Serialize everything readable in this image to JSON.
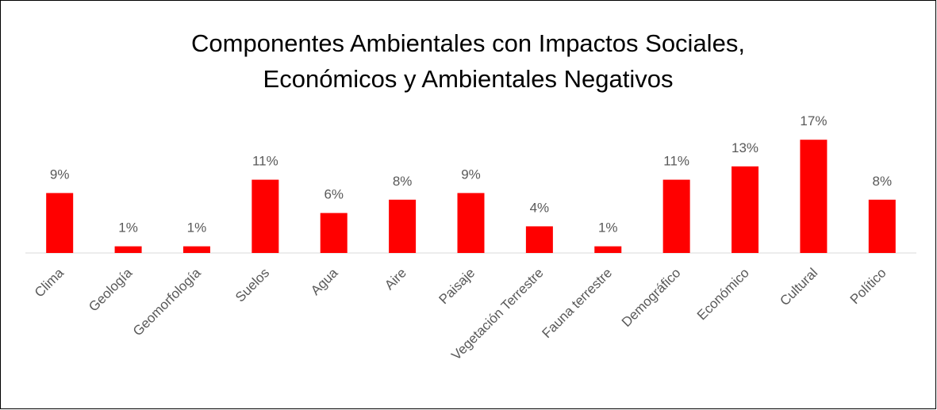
{
  "chart_data": {
    "type": "bar",
    "title": [
      "Componentes Ambientales con Impactos Sociales,",
      "Económicos y Ambientales Negativos"
    ],
    "categories": [
      "Clima",
      "Geología",
      "Geomorfología",
      "Suelos",
      "Agua",
      "Aire",
      "Paisaje",
      "Vegetación Terrestre",
      "Fauna terrestre",
      "Demográfico",
      "Económico",
      "Cultural",
      "Político"
    ],
    "values": [
      9,
      1,
      1,
      11,
      6,
      8,
      9,
      4,
      1,
      11,
      13,
      17,
      8
    ],
    "value_labels": [
      "9%",
      "1%",
      "1%",
      "11%",
      "6%",
      "8%",
      "9%",
      "4%",
      "1%",
      "11%",
      "13%",
      "17%",
      "8%"
    ],
    "color": "#ff0000"
  }
}
